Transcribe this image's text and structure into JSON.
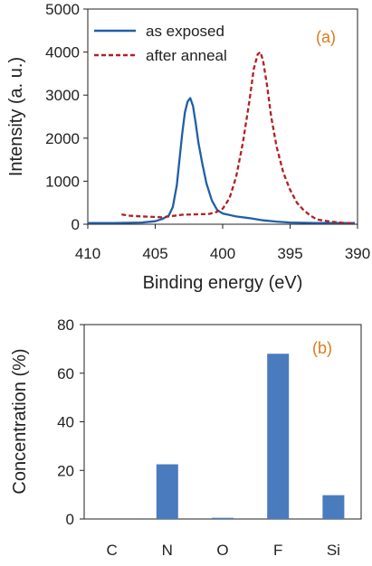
{
  "chart_data": [
    {
      "type": "line",
      "panel_label": "(a)",
      "xlabel": "Binding energy (eV)",
      "ylabel": "Intensity (a. u.)",
      "xlim": [
        410,
        390
      ],
      "x_reversed": true,
      "ylim": [
        0,
        5000
      ],
      "x_ticks": [
        410,
        405,
        400,
        395,
        390
      ],
      "y_ticks": [
        0,
        1000,
        2000,
        3000,
        4000,
        5000
      ],
      "grid": false,
      "legend_position": "top-left",
      "series": [
        {
          "name": "as exposed",
          "color": "#1f5fa8",
          "style": "solid",
          "points": [
            [
              410,
              30
            ],
            [
              408,
              30
            ],
            [
              406,
              40
            ],
            [
              405,
              70
            ],
            [
              404.5,
              120
            ],
            [
              404,
              200
            ],
            [
              403.7,
              400
            ],
            [
              403.4,
              900
            ],
            [
              403.2,
              1500
            ],
            [
              403.0,
              2100
            ],
            [
              402.8,
              2600
            ],
            [
              402.6,
              2850
            ],
            [
              402.4,
              2930
            ],
            [
              402.2,
              2750
            ],
            [
              402.0,
              2350
            ],
            [
              401.8,
              1900
            ],
            [
              401.5,
              1400
            ],
            [
              401.2,
              950
            ],
            [
              400.8,
              550
            ],
            [
              400.4,
              330
            ],
            [
              400.0,
              250
            ],
            [
              399.0,
              180
            ],
            [
              398.0,
              140
            ],
            [
              397.0,
              90
            ],
            [
              396.0,
              60
            ],
            [
              395.0,
              40
            ],
            [
              393.0,
              30
            ],
            [
              391.0,
              30
            ],
            [
              390.2,
              30
            ]
          ]
        },
        {
          "name": "after anneal",
          "color": "#b22024",
          "style": "dashed",
          "points": [
            [
              407.5,
              230
            ],
            [
              407.0,
              200
            ],
            [
              406.0,
              180
            ],
            [
              405.0,
              170
            ],
            [
              404.5,
              160
            ],
            [
              404.0,
              180
            ],
            [
              403.0,
              220
            ],
            [
              402.0,
              230
            ],
            [
              401.0,
              240
            ],
            [
              400.5,
              280
            ],
            [
              400.0,
              360
            ],
            [
              399.5,
              600
            ],
            [
              399.0,
              1100
            ],
            [
              398.5,
              1900
            ],
            [
              398.0,
              2900
            ],
            [
              397.7,
              3600
            ],
            [
              397.4,
              3950
            ],
            [
              397.2,
              4000
            ],
            [
              397.0,
              3800
            ],
            [
              396.7,
              3200
            ],
            [
              396.4,
              2500
            ],
            [
              396.0,
              1800
            ],
            [
              395.5,
              1200
            ],
            [
              395.0,
              800
            ],
            [
              394.5,
              500
            ],
            [
              394.0,
              330
            ],
            [
              393.5,
              200
            ],
            [
              393.0,
              110
            ],
            [
              392.0,
              60
            ],
            [
              391.0,
              30
            ],
            [
              390.2,
              30
            ]
          ]
        }
      ]
    },
    {
      "type": "bar",
      "panel_label": "(b)",
      "xlabel": "",
      "ylabel": "Concentration (%)",
      "categories": [
        "C",
        "N",
        "O",
        "F",
        "Si"
      ],
      "values": [
        0,
        22.5,
        0.5,
        68,
        9.8
      ],
      "ylim": [
        0,
        80
      ],
      "y_ticks": [
        0,
        20,
        40,
        60,
        80
      ],
      "grid": false,
      "bar_color": "#4a7bbf"
    }
  ],
  "colors": {
    "panel_label": "#d97a1e",
    "axis": "#222222"
  }
}
